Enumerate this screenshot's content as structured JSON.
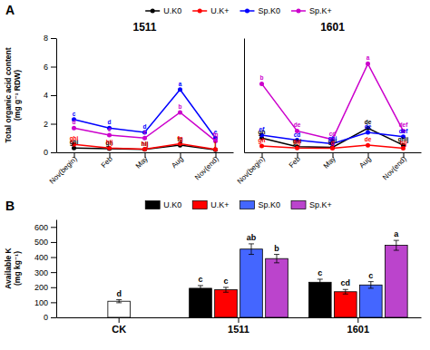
{
  "chart_data": [
    {
      "type": "line",
      "title": "1511",
      "panel_label": "A",
      "ylabel": "Total organic acid content\n(mg g⁻¹ RDW)",
      "categories": [
        "Nov(begin)",
        "Feb",
        "May",
        "Aug",
        "Nov(end)"
      ],
      "ylim": [
        0,
        8
      ],
      "yticks": [
        0,
        2,
        4,
        6,
        8
      ],
      "marker": "circle",
      "legend": "top",
      "series": [
        {
          "name": "U.K0",
          "color": "#000000",
          "values": [
            0.3,
            0.25,
            0.2,
            0.5,
            0.18
          ],
          "annotations": [
            "ghi",
            "gh",
            "hij",
            "fg",
            "j"
          ]
        },
        {
          "name": "U.K+",
          "color": "#ff0000",
          "values": [
            0.55,
            0.3,
            0.22,
            0.6,
            0.2
          ],
          "annotations": [
            "ghi",
            "hij",
            "hij",
            "fg",
            "j"
          ]
        },
        {
          "name": "Sp.K0",
          "color": "#0000ff",
          "values": [
            2.3,
            1.7,
            1.4,
            4.4,
            1.0
          ],
          "annotations": [
            "c",
            "d",
            "d",
            "a",
            "e"
          ]
        },
        {
          "name": "Sp.K+",
          "color": "#cc00cc",
          "values": [
            1.7,
            1.2,
            1.0,
            2.8,
            0.8
          ],
          "annotations": [
            "d",
            "e",
            "e",
            "b",
            "fg"
          ]
        }
      ]
    },
    {
      "type": "line",
      "title": "1601",
      "categories": [
        "Nov(begin)",
        "Feb",
        "May",
        "Aug",
        "Nov(end)"
      ],
      "ylim": [
        0,
        8
      ],
      "tick_labels": "x",
      "marker": "circle",
      "series": [
        {
          "color": "#000000",
          "values": [
            1.0,
            0.4,
            0.35,
            1.7,
            0.5
          ],
          "annotations": [
            "gh",
            "ghi",
            "ghi",
            "de",
            "ghij"
          ]
        },
        {
          "color": "#ff0000",
          "values": [
            0.45,
            0.3,
            0.28,
            0.5,
            0.28
          ],
          "annotations": [
            "gh",
            "hij",
            "g",
            "de",
            "hij"
          ]
        },
        {
          "color": "#0000ff",
          "values": [
            1.2,
            0.85,
            0.6,
            1.4,
            1.1
          ],
          "annotations": [
            "ef",
            "cd",
            "ghi",
            "de",
            "def"
          ]
        },
        {
          "color": "#cc00cc",
          "values": [
            4.8,
            1.5,
            0.9,
            6.2,
            1.5
          ],
          "annotations": [
            "b",
            "de",
            "cd",
            "a",
            "def"
          ]
        }
      ]
    },
    {
      "type": "bar",
      "panel_label": "B",
      "ylabel": "Available K\n(mg kg⁻¹)",
      "categories": [
        "CK",
        "1511",
        "1601"
      ],
      "ylim": [
        0,
        650
      ],
      "yticks": [
        0,
        100,
        200,
        300,
        400,
        500,
        600
      ],
      "legend": "top",
      "series": [
        {
          "color": "#ffffff",
          "values": [
            107,
            null,
            null
          ],
          "errors": [
            10,
            null,
            null
          ],
          "annotations": [
            "d",
            null,
            null
          ]
        },
        {
          "name": "U.K0",
          "color": "#000000",
          "values": [
            null,
            193,
            233
          ],
          "errors": [
            null,
            18,
            20
          ],
          "annotations": [
            null,
            "c",
            "c"
          ]
        },
        {
          "name": "U.K+",
          "color": "#ff0000",
          "values": [
            null,
            183,
            170
          ],
          "errors": [
            null,
            16,
            15
          ],
          "annotations": [
            null,
            "c",
            "cd"
          ]
        },
        {
          "name": "Sp.K0",
          "color": "#4466ff",
          "values": [
            null,
            453,
            215
          ],
          "errors": [
            null,
            35,
            22
          ],
          "annotations": [
            null,
            "ab",
            "c"
          ]
        },
        {
          "name": "Sp.K+",
          "color": "#bb44cc",
          "values": [
            null,
            390,
            478
          ],
          "errors": [
            null,
            28,
            33
          ],
          "annotations": [
            null,
            "b",
            "a"
          ]
        }
      ]
    }
  ]
}
